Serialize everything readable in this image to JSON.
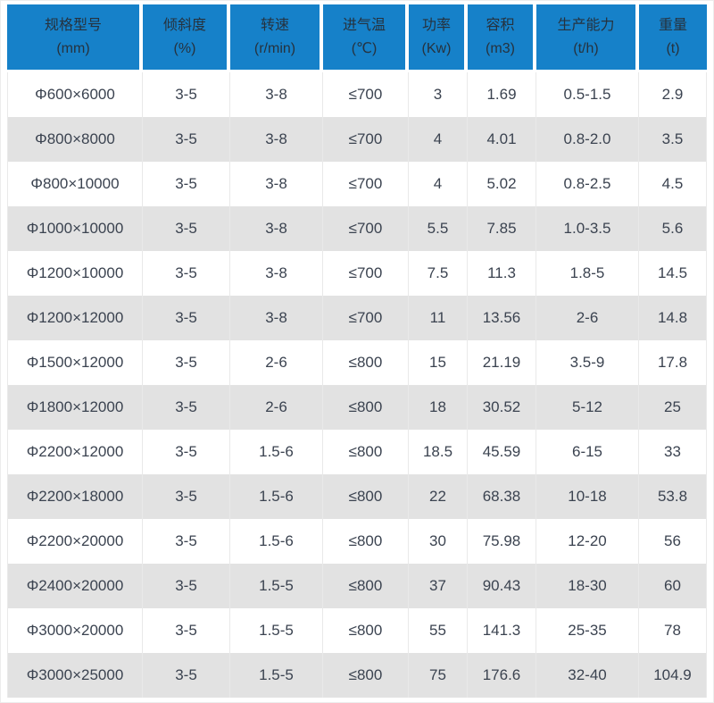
{
  "colors": {
    "header_bg": "#1681c9",
    "header_text": "#26323e",
    "body_text": "#3b4350",
    "alt_row_bg": "#e2e2e2",
    "grid_line": "#e9e9e9",
    "gap": "#ffffff",
    "outer_border": "#ececec"
  },
  "chart_data": {
    "type": "table",
    "title": "",
    "columns": [
      {
        "label": "规格型号",
        "unit": "(mm)"
      },
      {
        "label": "倾斜度",
        "unit": "(%)"
      },
      {
        "label": "转速",
        "unit": "(r/min)"
      },
      {
        "label": "进气温",
        "unit": "(℃)"
      },
      {
        "label": "功率",
        "unit": "(Kw)"
      },
      {
        "label": "容积",
        "unit": "(m3)"
      },
      {
        "label": "生产能力",
        "unit": "(t/h)"
      },
      {
        "label": "重量",
        "unit": "(t)"
      }
    ],
    "rows": [
      [
        "Φ600×6000",
        "3-5",
        "3-8",
        "≤700",
        "3",
        "1.69",
        "0.5-1.5",
        "2.9"
      ],
      [
        "Φ800×8000",
        "3-5",
        "3-8",
        "≤700",
        "4",
        "4.01",
        "0.8-2.0",
        "3.5"
      ],
      [
        "Φ800×10000",
        "3-5",
        "3-8",
        "≤700",
        "4",
        "5.02",
        "0.8-2.5",
        "4.5"
      ],
      [
        "Φ1000×10000",
        "3-5",
        "3-8",
        "≤700",
        "5.5",
        "7.85",
        "1.0-3.5",
        "5.6"
      ],
      [
        "Φ1200×10000",
        "3-5",
        "3-8",
        "≤700",
        "7.5",
        "11.3",
        "1.8-5",
        "14.5"
      ],
      [
        "Φ1200×12000",
        "3-5",
        "3-8",
        "≤700",
        "11",
        "13.56",
        "2-6",
        "14.8"
      ],
      [
        "Φ1500×12000",
        "3-5",
        "2-6",
        "≤800",
        "15",
        "21.19",
        "3.5-9",
        "17.8"
      ],
      [
        "Φ1800×12000",
        "3-5",
        "2-6",
        "≤800",
        "18",
        "30.52",
        "5-12",
        "25"
      ],
      [
        "Φ2200×12000",
        "3-5",
        "1.5-6",
        "≤800",
        "18.5",
        "45.59",
        "6-15",
        "33"
      ],
      [
        "Φ2200×18000",
        "3-5",
        "1.5-6",
        "≤800",
        "22",
        "68.38",
        "10-18",
        "53.8"
      ],
      [
        "Φ2200×20000",
        "3-5",
        "1.5-6",
        "≤800",
        "30",
        "75.98",
        "12-20",
        "56"
      ],
      [
        "Φ2400×20000",
        "3-5",
        "1.5-5",
        "≤800",
        "37",
        "90.43",
        "18-30",
        "60"
      ],
      [
        "Φ3000×20000",
        "3-5",
        "1.5-5",
        "≤800",
        "55",
        "141.3",
        "25-35",
        "78"
      ],
      [
        "Φ3000×25000",
        "3-5",
        "1.5-5",
        "≤800",
        "75",
        "176.6",
        "32-40",
        "104.9"
      ]
    ]
  }
}
